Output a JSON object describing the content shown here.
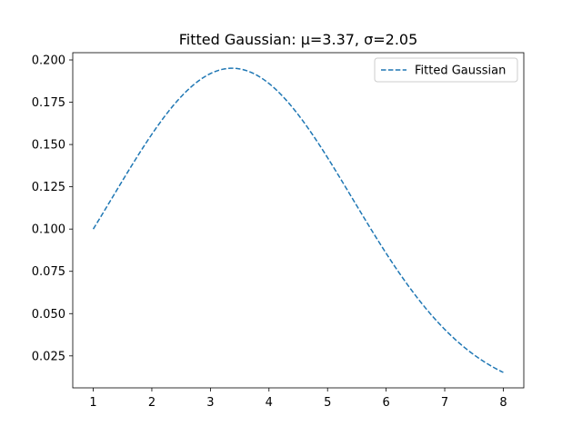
{
  "chart_data": {
    "type": "line",
    "title": "Fitted Gaussian: μ=3.37, σ=2.05",
    "xlabel": "",
    "ylabel": "",
    "xlim": [
      0.65,
      8.35
    ],
    "ylim": [
      0.0061,
      0.2043
    ],
    "xticks": [
      1,
      2,
      3,
      4,
      5,
      6,
      7,
      8
    ],
    "yticks": [
      "0.025",
      "0.050",
      "0.075",
      "0.100",
      "0.125",
      "0.150",
      "0.175",
      "0.200"
    ],
    "grid": false,
    "legend": {
      "placement": "top-right"
    },
    "series": [
      {
        "name": "Fitted Gaussian",
        "style": "dashed",
        "color": "#1f77b4",
        "mu": 3.37,
        "sigma": 2.05,
        "x": [
          1.0,
          1.5,
          2.0,
          2.5,
          3.0,
          3.37,
          3.5,
          4.0,
          4.5,
          5.0,
          5.5,
          6.0,
          6.5,
          7.0,
          7.5,
          8.0
        ],
        "y": [
          0.1,
          0.128,
          0.155,
          0.178,
          0.192,
          0.195,
          0.194,
          0.185,
          0.167,
          0.141,
          0.113,
          0.085,
          0.06,
          0.04,
          0.026,
          0.015
        ]
      }
    ]
  }
}
